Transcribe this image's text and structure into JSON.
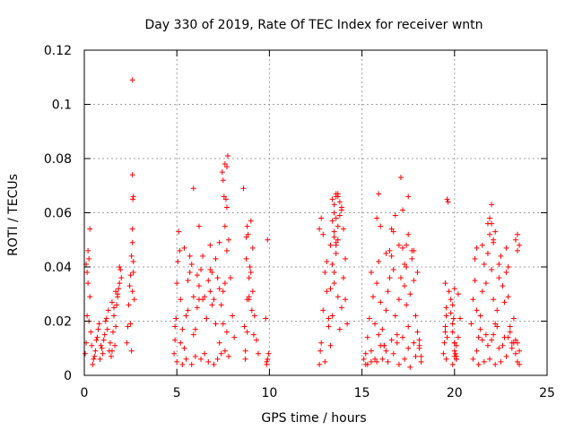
{
  "chart_data": {
    "type": "scatter",
    "title": "Day 330 of 2019, Rate Of TEC Index for receiver wntn",
    "xlabel": "GPS time / hours",
    "ylabel": "ROTI / TECUs",
    "xlim": [
      0,
      25
    ],
    "ylim": [
      0,
      0.12
    ],
    "xticks": [
      "0",
      "5",
      "10",
      "15",
      "20",
      "25"
    ],
    "yticks": [
      "0",
      "0.02",
      "0.04",
      "0.06",
      "0.08",
      "0.1",
      "0.12"
    ],
    "grid": true,
    "marker": "+",
    "color": "#ff0000",
    "series": [
      {
        "name": "ROTI",
        "x": [
          0.05,
          0.1,
          0.15,
          0.2,
          0.25,
          0.3,
          0.35,
          0.1,
          0.2,
          0.3,
          0.15,
          0.25,
          0.4,
          0.5,
          0.6,
          0.7,
          0.8,
          0.9,
          1.0,
          1.1,
          1.2,
          1.3,
          1.4,
          1.5,
          1.6,
          1.7,
          1.8,
          1.9,
          2.0,
          0.45,
          0.55,
          0.65,
          0.75,
          0.85,
          0.95,
          1.05,
          1.15,
          1.25,
          1.35,
          1.45,
          1.55,
          1.65,
          1.75,
          1.85,
          1.95,
          1.5,
          1.6,
          1.7,
          1.8,
          1.9,
          2.3,
          2.35,
          2.4,
          2.45,
          2.5,
          2.55,
          2.6,
          2.65,
          2.7,
          2.5,
          2.55,
          2.6,
          2.65,
          2.6,
          2.62,
          2.65,
          2.6,
          2.6,
          4.85,
          4.9,
          4.95,
          5.0,
          5.05,
          5.1,
          5.15,
          5.2,
          5.3,
          5.4,
          5.5,
          5.6,
          5.7,
          5.8,
          5.9,
          6.0,
          6.1,
          6.2,
          6.3,
          6.4,
          6.5,
          6.6,
          6.7,
          6.8,
          6.9,
          7.0,
          7.1,
          7.2,
          7.3,
          7.4,
          7.5,
          7.6,
          7.7,
          7.8,
          7.9,
          8.0,
          8.1,
          5.0,
          5.3,
          5.5,
          5.8,
          6.0,
          6.3,
          6.5,
          6.7,
          7.0,
          7.2,
          7.4,
          7.6,
          7.8,
          4.9,
          5.2,
          5.6,
          5.9,
          6.2,
          6.6,
          6.9,
          7.3,
          7.7,
          5.4,
          6.1,
          6.4,
          6.8,
          7.1,
          7.5,
          5.7,
          6.2,
          6.8,
          7.3,
          7.6,
          7.7,
          7.65,
          7.7,
          7.75,
          7.6,
          7.5,
          7.55,
          7.45,
          5.9,
          8.6,
          8.7,
          8.8,
          8.9,
          9.0,
          9.1,
          9.2,
          9.3,
          9.4,
          8.65,
          8.75,
          8.85,
          8.95,
          9.05,
          9.15,
          8.7,
          8.9,
          9.1,
          8.8,
          9.0,
          8.75,
          8.8,
          8.9,
          9.8,
          9.85,
          9.9,
          9.95,
          9.85,
          9.9,
          12.7,
          12.8,
          12.9,
          13.0,
          13.1,
          13.2,
          13.3,
          13.4,
          13.5,
          13.6,
          13.7,
          13.8,
          13.9,
          14.0,
          14.1,
          14.2,
          12.75,
          12.9,
          13.1,
          13.3,
          13.5,
          13.7,
          13.9,
          14.1,
          13.2,
          13.4,
          13.6,
          13.8,
          14.0,
          13.3,
          13.5,
          13.7,
          13.9,
          13.4,
          13.6,
          13.8,
          13.5,
          13.6,
          13.7,
          13.5,
          13.6,
          13.4,
          13.7,
          13.5,
          13.6,
          12.8,
          12.7,
          13.0,
          15.1,
          15.2,
          15.3,
          15.4,
          15.5,
          15.6,
          15.7,
          15.8,
          15.9,
          16.0,
          16.1,
          16.2,
          16.3,
          16.4,
          16.5,
          16.6,
          16.7,
          16.8,
          16.9,
          17.0,
          17.1,
          17.2,
          17.3,
          17.4,
          17.5,
          17.6,
          17.7,
          17.8,
          17.9,
          18.0,
          18.1,
          18.2,
          15.2,
          15.5,
          15.8,
          16.1,
          16.4,
          16.7,
          17.0,
          17.3,
          17.6,
          17.9,
          18.2,
          15.3,
          15.7,
          16.0,
          16.3,
          16.6,
          16.9,
          17.2,
          17.5,
          17.8,
          18.1,
          15.9,
          16.2,
          16.6,
          17.0,
          17.4,
          17.7,
          16.0,
          16.3,
          16.7,
          17.1,
          17.5,
          15.8,
          15.9,
          16.5,
          16.8,
          17.2,
          17.3,
          17.4,
          17.5,
          17.8,
          18.0,
          18.1,
          15.5,
          19.4,
          19.45,
          19.5,
          19.55,
          19.6,
          19.65,
          19.5,
          19.6,
          19.55,
          19.5,
          19.55,
          19.7,
          19.8,
          19.9,
          20.0,
          20.1,
          20.2,
          20.3,
          19.8,
          19.9,
          20.0,
          20.1,
          20.2,
          19.9,
          20.0,
          20.05,
          20.1,
          19.95,
          20.0,
          19.9,
          20.0,
          20.1,
          20.9,
          21.0,
          21.1,
          21.2,
          21.3,
          21.4,
          21.5,
          21.6,
          21.7,
          21.8,
          21.9,
          22.0,
          22.1,
          22.2,
          22.3,
          22.4,
          22.5,
          22.6,
          22.7,
          22.8,
          22.9,
          23.0,
          23.1,
          23.2,
          23.3,
          23.4,
          23.5,
          21.0,
          21.3,
          21.6,
          21.9,
          22.2,
          22.5,
          22.8,
          23.1,
          23.4,
          21.2,
          21.5,
          21.8,
          22.1,
          22.4,
          22.7,
          23.0,
          23.3,
          21.4,
          21.7,
          22.0,
          22.3,
          22.6,
          22.9,
          23.2,
          23.5,
          21.5,
          21.8,
          22.1,
          22.4,
          22.8,
          23.4,
          22.0,
          21.9,
          22.0,
          22.1,
          22.2,
          21.1,
          21.2,
          22.9,
          23.3,
          23.4,
          23.5
        ],
        "y": [
          0.008,
          0.012,
          0.022,
          0.034,
          0.043,
          0.029,
          0.016,
          0.041,
          0.046,
          0.054,
          0.038,
          0.02,
          0.011,
          0.006,
          0.009,
          0.014,
          0.019,
          0.011,
          0.008,
          0.015,
          0.021,
          0.024,
          0.012,
          0.009,
          0.025,
          0.018,
          0.029,
          0.034,
          0.036,
          0.004,
          0.007,
          0.013,
          0.017,
          0.006,
          0.01,
          0.013,
          0.02,
          0.017,
          0.009,
          0.007,
          0.016,
          0.011,
          0.026,
          0.032,
          0.039,
          0.027,
          0.022,
          0.031,
          0.03,
          0.04,
          0.012,
          0.018,
          0.026,
          0.033,
          0.019,
          0.009,
          0.031,
          0.042,
          0.028,
          0.037,
          0.044,
          0.049,
          0.038,
          0.054,
          0.065,
          0.066,
          0.074,
          0.109,
          0.008,
          0.013,
          0.021,
          0.034,
          0.042,
          0.053,
          0.046,
          0.028,
          0.017,
          0.01,
          0.022,
          0.035,
          0.038,
          0.041,
          0.029,
          0.017,
          0.025,
          0.033,
          0.039,
          0.044,
          0.029,
          0.021,
          0.035,
          0.031,
          0.038,
          0.028,
          0.019,
          0.036,
          0.032,
          0.026,
          0.019,
          0.034,
          0.046,
          0.05,
          0.036,
          0.022,
          0.014,
          0.005,
          0.004,
          0.006,
          0.004,
          0.007,
          0.006,
          0.008,
          0.005,
          0.004,
          0.006,
          0.008,
          0.009,
          0.007,
          0.018,
          0.012,
          0.024,
          0.015,
          0.028,
          0.021,
          0.026,
          0.012,
          0.016,
          0.047,
          0.037,
          0.028,
          0.039,
          0.043,
          0.031,
          0.044,
          0.055,
          0.048,
          0.049,
          0.055,
          0.062,
          0.065,
          0.077,
          0.081,
          0.078,
          0.072,
          0.066,
          0.075,
          0.069,
          0.069,
          0.009,
          0.016,
          0.028,
          0.038,
          0.031,
          0.022,
          0.013,
          0.008,
          0.018,
          0.043,
          0.052,
          0.04,
          0.024,
          0.015,
          0.006,
          0.036,
          0.047,
          0.028,
          0.057,
          0.051,
          0.055,
          0.029,
          0.021,
          0.004,
          0.006,
          0.008,
          0.005,
          0.05,
          0.004,
          0.012,
          0.024,
          0.038,
          0.031,
          0.018,
          0.011,
          0.022,
          0.034,
          0.045,
          0.029,
          0.017,
          0.025,
          0.036,
          0.028,
          0.019,
          0.009,
          0.052,
          0.042,
          0.048,
          0.038,
          0.055,
          0.061,
          0.043,
          0.021,
          0.057,
          0.049,
          0.064,
          0.054,
          0.032,
          0.06,
          0.067,
          0.062,
          0.041,
          0.066,
          0.059,
          0.051,
          0.048,
          0.066,
          0.063,
          0.058,
          0.065,
          0.05,
          0.053,
          0.067,
          0.058,
          0.054,
          0.005,
          0.006,
          0.008,
          0.014,
          0.021,
          0.038,
          0.029,
          0.019,
          0.034,
          0.042,
          0.027,
          0.017,
          0.011,
          0.024,
          0.031,
          0.036,
          0.044,
          0.039,
          0.022,
          0.015,
          0.028,
          0.036,
          0.047,
          0.033,
          0.026,
          0.018,
          0.03,
          0.046,
          0.035,
          0.022,
          0.016,
          0.01,
          0.007,
          0.004,
          0.009,
          0.005,
          0.006,
          0.005,
          0.008,
          0.004,
          0.006,
          0.003,
          0.007,
          0.005,
          0.004,
          0.006,
          0.011,
          0.009,
          0.013,
          0.012,
          0.014,
          0.01,
          0.012,
          0.013,
          0.015,
          0.011,
          0.054,
          0.048,
          0.04,
          0.043,
          0.055,
          0.045,
          0.053,
          0.073,
          0.066,
          0.058,
          0.067,
          0.046,
          0.059,
          0.061,
          0.041,
          0.048,
          0.052,
          0.046,
          0.038,
          0.011,
          0.005,
          0.008,
          0.012,
          0.016,
          0.022,
          0.065,
          0.064,
          0.034,
          0.014,
          0.006,
          0.018,
          0.025,
          0.031,
          0.023,
          0.016,
          0.009,
          0.006,
          0.014,
          0.021,
          0.028,
          0.019,
          0.012,
          0.007,
          0.03,
          0.004,
          0.012,
          0.008,
          0.006,
          0.021,
          0.032,
          0.026,
          0.007,
          0.011,
          0.019,
          0.028,
          0.035,
          0.024,
          0.014,
          0.022,
          0.031,
          0.041,
          0.034,
          0.045,
          0.052,
          0.039,
          0.028,
          0.019,
          0.024,
          0.036,
          0.044,
          0.033,
          0.027,
          0.038,
          0.029,
          0.018,
          0.012,
          0.021,
          0.008,
          0.005,
          0.004,
          0.006,
          0.004,
          0.005,
          0.006,
          0.004,
          0.005,
          0.007,
          0.01,
          0.012,
          0.009,
          0.013,
          0.011,
          0.015,
          0.01,
          0.014,
          0.016,
          0.013,
          0.017,
          0.015,
          0.013,
          0.018,
          0.011,
          0.014,
          0.012,
          0.009,
          0.048,
          0.056,
          0.049,
          0.041,
          0.047,
          0.052,
          0.056,
          0.058,
          0.063,
          0.05,
          0.053,
          0.043,
          0.047,
          0.04,
          0.05,
          0.046,
          0.048
        ]
      }
    ]
  }
}
